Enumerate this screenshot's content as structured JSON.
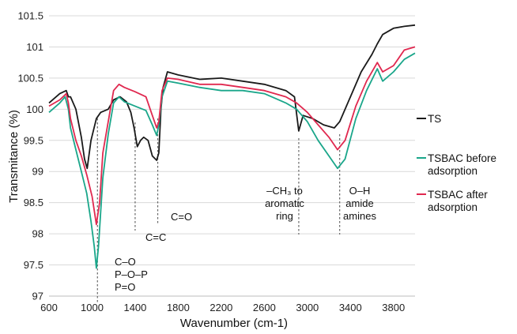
{
  "chart_data": {
    "type": "line",
    "title": "",
    "xlabel": "Wavenumber (cm-1)",
    "ylabel": "Transmitance (%)",
    "xlim": [
      600,
      4000
    ],
    "ylim": [
      97,
      101.5
    ],
    "xticks": [
      "600",
      "1000",
      "1400",
      "1800",
      "2200",
      "2600",
      "3000",
      "3400",
      "3800"
    ],
    "yticks": [
      "97",
      "97.5",
      "98",
      "98.5",
      "99",
      "99.5",
      "100",
      "100.5",
      "101",
      "101.5"
    ],
    "grid": "horizontal",
    "legend_placement": "right",
    "series": [
      {
        "name": "TS",
        "legend_lines": [
          "TS"
        ],
        "color": "#1a1a1a",
        "points": [
          [
            600,
            100.1
          ],
          [
            700,
            100.25
          ],
          [
            760,
            100.3
          ],
          [
            780,
            100.2
          ],
          [
            800,
            100.2
          ],
          [
            850,
            100.0
          ],
          [
            900,
            99.55
          ],
          [
            930,
            99.2
          ],
          [
            955,
            99.05
          ],
          [
            990,
            99.5
          ],
          [
            1040,
            99.85
          ],
          [
            1080,
            99.95
          ],
          [
            1150,
            100.0
          ],
          [
            1200,
            100.15
          ],
          [
            1260,
            100.2
          ],
          [
            1320,
            100.12
          ],
          [
            1360,
            99.95
          ],
          [
            1390,
            99.7
          ],
          [
            1420,
            99.4
          ],
          [
            1450,
            99.5
          ],
          [
            1480,
            99.55
          ],
          [
            1520,
            99.5
          ],
          [
            1560,
            99.25
          ],
          [
            1600,
            99.18
          ],
          [
            1620,
            99.3
          ],
          [
            1640,
            100.0
          ],
          [
            1660,
            100.35
          ],
          [
            1700,
            100.6
          ],
          [
            1800,
            100.55
          ],
          [
            2000,
            100.48
          ],
          [
            2200,
            100.5
          ],
          [
            2400,
            100.45
          ],
          [
            2600,
            100.4
          ],
          [
            2800,
            100.3
          ],
          [
            2880,
            100.2
          ],
          [
            2920,
            99.65
          ],
          [
            2960,
            99.9
          ],
          [
            3050,
            99.85
          ],
          [
            3150,
            99.75
          ],
          [
            3250,
            99.7
          ],
          [
            3300,
            99.8
          ],
          [
            3400,
            100.2
          ],
          [
            3500,
            100.6
          ],
          [
            3600,
            100.88
          ],
          [
            3650,
            101.05
          ],
          [
            3700,
            101.2
          ],
          [
            3800,
            101.3
          ],
          [
            3900,
            101.33
          ],
          [
            4000,
            101.35
          ]
        ]
      },
      {
        "name": "TSBAC before adsorption",
        "legend_lines": [
          "TSBAC before",
          "adsorption"
        ],
        "color": "#1aa68a",
        "points": [
          [
            600,
            99.95
          ],
          [
            700,
            100.1
          ],
          [
            750,
            100.2
          ],
          [
            780,
            100.0
          ],
          [
            800,
            99.7
          ],
          [
            850,
            99.35
          ],
          [
            900,
            99.0
          ],
          [
            950,
            98.65
          ],
          [
            990,
            98.2
          ],
          [
            1020,
            97.8
          ],
          [
            1040,
            97.45
          ],
          [
            1060,
            97.8
          ],
          [
            1100,
            98.9
          ],
          [
            1150,
            99.6
          ],
          [
            1200,
            100.1
          ],
          [
            1250,
            100.2
          ],
          [
            1300,
            100.12
          ],
          [
            1400,
            100.05
          ],
          [
            1500,
            99.98
          ],
          [
            1560,
            99.75
          ],
          [
            1600,
            99.58
          ],
          [
            1620,
            99.75
          ],
          [
            1650,
            100.2
          ],
          [
            1700,
            100.45
          ],
          [
            1800,
            100.42
          ],
          [
            2000,
            100.35
          ],
          [
            2200,
            100.3
          ],
          [
            2400,
            100.3
          ],
          [
            2600,
            100.25
          ],
          [
            2800,
            100.1
          ],
          [
            2900,
            100.0
          ],
          [
            3000,
            99.8
          ],
          [
            3100,
            99.5
          ],
          [
            3200,
            99.25
          ],
          [
            3280,
            99.05
          ],
          [
            3350,
            99.2
          ],
          [
            3450,
            99.85
          ],
          [
            3550,
            100.3
          ],
          [
            3650,
            100.65
          ],
          [
            3700,
            100.45
          ],
          [
            3800,
            100.6
          ],
          [
            3900,
            100.8
          ],
          [
            4000,
            100.9
          ]
        ]
      },
      {
        "name": "TSBAC after adsorption",
        "legend_lines": [
          "TSBAC after",
          "adsorption"
        ],
        "color": "#e0284f",
        "points": [
          [
            600,
            100.05
          ],
          [
            700,
            100.15
          ],
          [
            760,
            100.25
          ],
          [
            780,
            100.1
          ],
          [
            800,
            99.85
          ],
          [
            850,
            99.5
          ],
          [
            900,
            99.25
          ],
          [
            950,
            98.95
          ],
          [
            1000,
            98.6
          ],
          [
            1040,
            98.15
          ],
          [
            1070,
            98.5
          ],
          [
            1100,
            99.3
          ],
          [
            1150,
            99.8
          ],
          [
            1200,
            100.3
          ],
          [
            1250,
            100.4
          ],
          [
            1300,
            100.35
          ],
          [
            1400,
            100.28
          ],
          [
            1500,
            100.2
          ],
          [
            1560,
            99.9
          ],
          [
            1600,
            99.7
          ],
          [
            1620,
            99.8
          ],
          [
            1650,
            100.3
          ],
          [
            1700,
            100.5
          ],
          [
            1800,
            100.48
          ],
          [
            2000,
            100.4
          ],
          [
            2200,
            100.4
          ],
          [
            2400,
            100.35
          ],
          [
            2600,
            100.3
          ],
          [
            2800,
            100.2
          ],
          [
            2900,
            100.1
          ],
          [
            3000,
            99.95
          ],
          [
            3100,
            99.75
          ],
          [
            3200,
            99.55
          ],
          [
            3280,
            99.35
          ],
          [
            3350,
            99.5
          ],
          [
            3450,
            100.05
          ],
          [
            3550,
            100.45
          ],
          [
            3650,
            100.75
          ],
          [
            3700,
            100.6
          ],
          [
            3800,
            100.7
          ],
          [
            3900,
            100.95
          ],
          [
            4000,
            101.0
          ]
        ]
      }
    ],
    "annotations": [
      {
        "x": 1050,
        "lines": [
          "C–O",
          "P–O–P",
          "P=O"
        ]
      },
      {
        "x": 1400,
        "lines": [
          "C=C"
        ]
      },
      {
        "x": 1610,
        "lines": [
          "C=O"
        ]
      },
      {
        "x": 2920,
        "lines": [
          "–CH₃ to",
          "aromatic",
          "ring"
        ]
      },
      {
        "x": 3300,
        "lines": [
          "O–H",
          "amide",
          "amines"
        ]
      }
    ]
  }
}
